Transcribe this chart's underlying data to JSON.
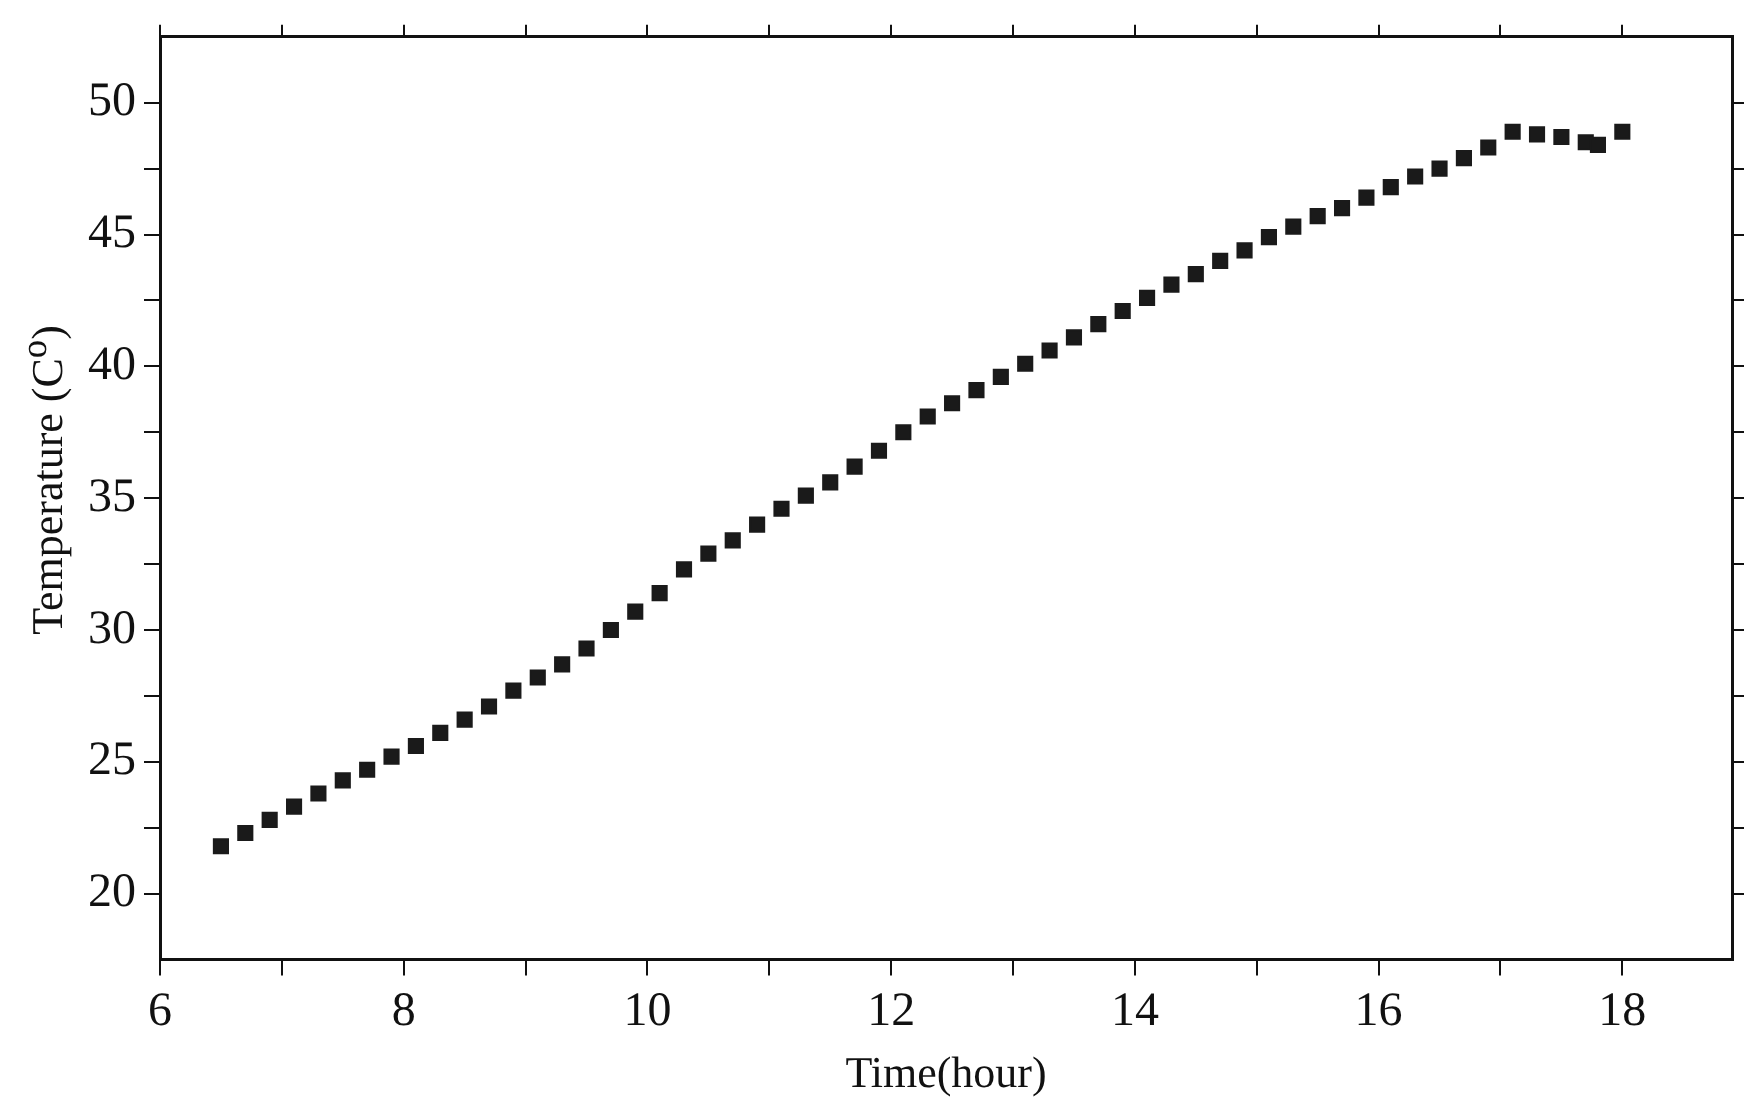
{
  "chart_data": {
    "type": "scatter",
    "xlabel": "Time(hour)",
    "ylabel": "Temperature (C$^{o}$)",
    "x": [
      6.5,
      6.7,
      6.9,
      7.1,
      7.3,
      7.5,
      7.7,
      7.9,
      8.1,
      8.3,
      8.5,
      8.7,
      8.9,
      9.1,
      9.3,
      9.5,
      9.7,
      9.9,
      10.1,
      10.3,
      10.5,
      10.7,
      10.9,
      11.1,
      11.3,
      11.5,
      11.7,
      11.9,
      12.1,
      12.3,
      12.5,
      12.7,
      12.9,
      13.1,
      13.3,
      13.5,
      13.7,
      13.9,
      14.1,
      14.3,
      14.5,
      14.7,
      14.9,
      15.1,
      15.3,
      15.5,
      15.7,
      15.9,
      16.1,
      16.3,
      16.5,
      16.7,
      16.9,
      17.1,
      17.3,
      17.5,
      17.7,
      17.8,
      18.0
    ],
    "series": [
      {
        "color": "#1a1a1a",
        "values": [
          21.8,
          22.3,
          22.8,
          23.3,
          23.8,
          24.3,
          24.7,
          25.2,
          25.6,
          26.1,
          26.6,
          27.1,
          27.7,
          28.2,
          28.7,
          29.3,
          30.0,
          30.7,
          31.4,
          32.3,
          32.9,
          33.4,
          34.0,
          34.6,
          35.1,
          35.6,
          36.2,
          36.8,
          37.5,
          38.1,
          38.6,
          39.1,
          39.6,
          40.1,
          40.6,
          41.1,
          41.6,
          42.1,
          42.6,
          43.1,
          43.5,
          44.0,
          44.4,
          44.9,
          45.3,
          45.7,
          46.0,
          46.4,
          46.8,
          47.2,
          47.5,
          47.9,
          48.3,
          48.9,
          48.8,
          48.7,
          48.5,
          48.4,
          48.9
        ]
      }
    ],
    "marker": "square",
    "grid": false,
    "xlim": [
      6,
      18.9
    ],
    "xticks": [
      6,
      {
        "value": 7,
        "label": null
      },
      8,
      {
        "value": 9,
        "label": null
      },
      10,
      {
        "value": 11,
        "label": null
      },
      12,
      {
        "value": 13,
        "label": null
      },
      14,
      {
        "value": 15,
        "label": null
      },
      16,
      {
        "value": 17,
        "label": null
      },
      18
    ],
    "ylim": [
      17.5,
      52.5
    ],
    "yticks": [
      20,
      {
        "value": 22.5,
        "label": null
      },
      25,
      {
        "value": 27.5,
        "label": null
      },
      30,
      {
        "value": 32.5,
        "label": null
      },
      35,
      {
        "value": 37.5,
        "label": null
      },
      40,
      {
        "value": 42.5,
        "label": null
      },
      45,
      {
        "value": 47.5,
        "label": null
      },
      50
    ]
  }
}
